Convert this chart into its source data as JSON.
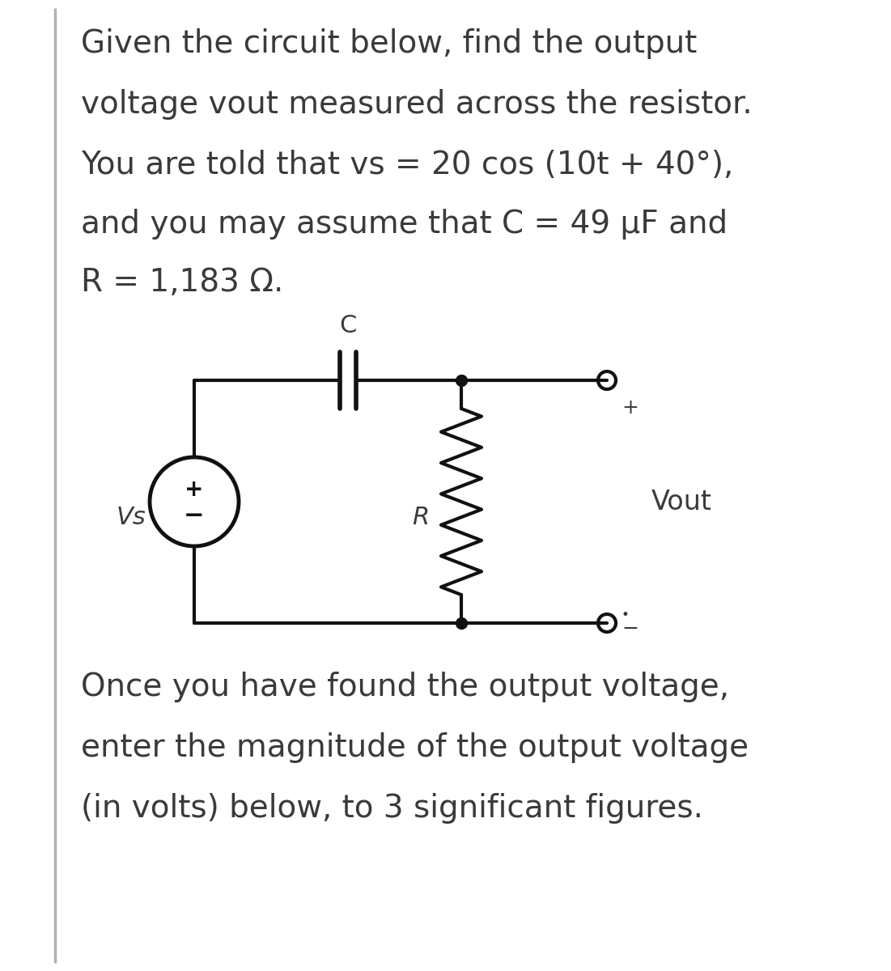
{
  "bg_color": "#ffffff",
  "text_color": "#3a3a3a",
  "line_color": "#111111",
  "title_lines": [
    "Given the circuit below, find the output",
    "voltage vout measured across the resistor.",
    "You are told that vs = 20 cos (10t + 40°),",
    "and you may assume that C = 49 μF and",
    "R = 1,183 Ω."
  ],
  "bottom_lines": [
    "Once you have found the output voltage,",
    "enter the magnitude of the output voltage",
    "(in volts) below, to 3 significant figures."
  ],
  "font_size_main": 28,
  "font_size_bottom": 28,
  "font_size_circuit": 22,
  "circuit_label_C": "C",
  "circuit_label_R": "R",
  "circuit_label_Vs": "Vs",
  "circuit_label_Vout": "Vout",
  "border_color": "#b0b0b0"
}
